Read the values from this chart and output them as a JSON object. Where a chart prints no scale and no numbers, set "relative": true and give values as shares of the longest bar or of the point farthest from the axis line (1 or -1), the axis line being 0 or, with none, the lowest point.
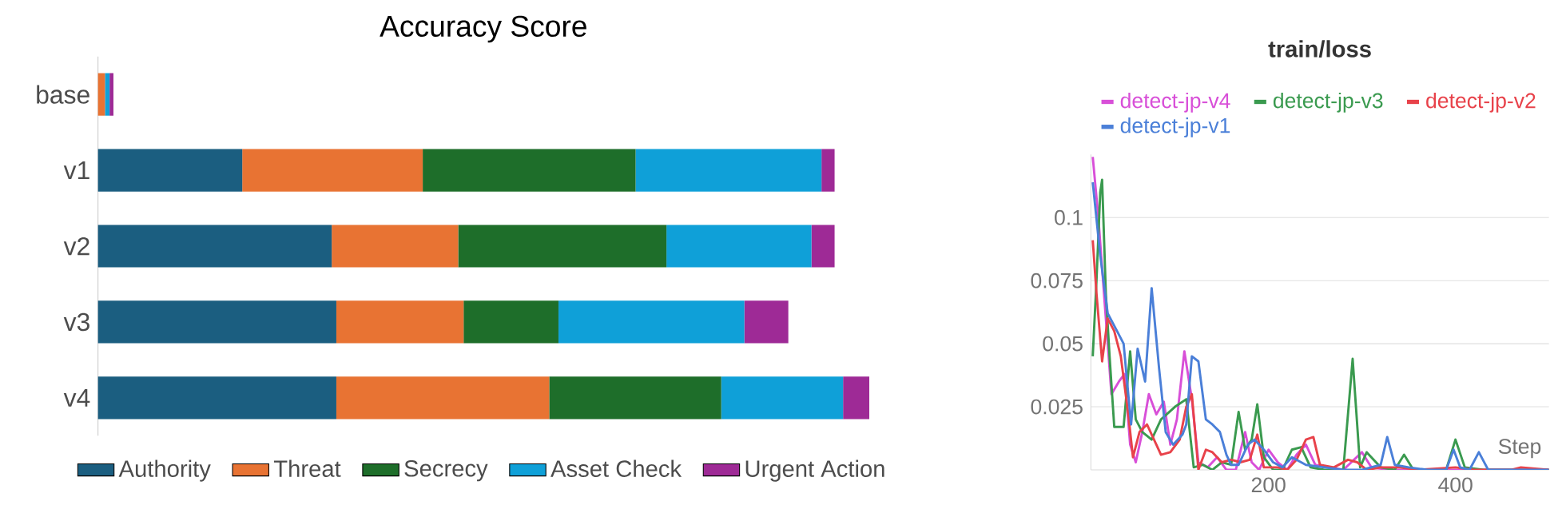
{
  "chart_data": [
    {
      "type": "bar",
      "orientation": "horizontal",
      "stacked": true,
      "relative": true,
      "title": "Accuracy Score",
      "legend": "bottom",
      "categories": [
        "base",
        "v1",
        "v2",
        "v3",
        "v4"
      ],
      "series": [
        {
          "name": "Authority",
          "color": "#1b5e80",
          "values": [
            0,
            0.187,
            0.303,
            0.309,
            0.309
          ]
        },
        {
          "name": "Threat",
          "color": "#e87333",
          "values": [
            0.009,
            0.234,
            0.164,
            0.165,
            0.276
          ]
        },
        {
          "name": "Secrecy",
          "color": "#1e6e2a",
          "values": [
            0,
            0.276,
            0.27,
            0.123,
            0.223
          ]
        },
        {
          "name": "Asset Check",
          "color": "#0fa0d8",
          "values": [
            0.006,
            0.241,
            0.188,
            0.241,
            0.158
          ]
        },
        {
          "name": "Urgent Action",
          "color": "#9e2a96",
          "values": [
            0.005,
            0.017,
            0.03,
            0.057,
            0.034
          ]
        }
      ]
    },
    {
      "type": "line",
      "title": "train/loss",
      "xlabel": "Step",
      "legend": "top",
      "grid": "y",
      "xlim": [
        10,
        500
      ],
      "ylim": [
        0,
        0.125
      ],
      "xticks": [
        200,
        400
      ],
      "yticks": [
        0.025,
        0.05,
        0.075,
        0.1
      ],
      "series": [
        {
          "name": "detect-jp-v4",
          "color": "#d84fd8",
          "x": [
            12,
            18,
            25,
            32,
            40,
            46,
            52,
            58,
            65,
            72,
            80,
            88,
            95,
            102,
            110,
            118,
            125,
            135,
            145,
            155,
            165,
            175,
            182,
            190,
            200,
            210,
            220,
            230,
            240,
            250,
            265,
            280,
            300,
            310,
            330,
            360,
            400,
            500
          ],
          "values": [
            0.124,
            0.1,
            0.065,
            0.03,
            0.035,
            0.038,
            0.01,
            0.003,
            0.015,
            0.03,
            0.022,
            0.027,
            0.01,
            0.02,
            0.047,
            0.028,
            0.003,
            0.001,
            0.005,
            0,
            0,
            0.015,
            0.003,
            0,
            0.008,
            0.003,
            0,
            0.006,
            0.01,
            0.002,
            0.001,
            0,
            0.007,
            0.001,
            0,
            0,
            0,
            0
          ]
        },
        {
          "name": "detect-jp-v3",
          "color": "#3a9a4f",
          "x": [
            12,
            16,
            20,
            22,
            26,
            30,
            35,
            45,
            52,
            58,
            65,
            75,
            85,
            100,
            112,
            120,
            130,
            140,
            150,
            160,
            168,
            175,
            182,
            188,
            195,
            205,
            215,
            225,
            235,
            245,
            260,
            280,
            290,
            298,
            305,
            320,
            335,
            345,
            355,
            390,
            400,
            410,
            430,
            500
          ],
          "values": [
            0.045,
            0.075,
            0.11,
            0.115,
            0.07,
            0.045,
            0.017,
            0.017,
            0.047,
            0.02,
            0.015,
            0.012,
            0.02,
            0.025,
            0.028,
            0.001,
            0.002,
            0,
            0.003,
            0.002,
            0.023,
            0.008,
            0.012,
            0.026,
            0.005,
            0,
            0,
            0.008,
            0.009,
            0.001,
            0,
            0,
            0.044,
            0.001,
            0.007,
            0.001,
            0,
            0.006,
            0,
            0,
            0.012,
            0.001,
            0,
            0
          ]
        },
        {
          "name": "detect-jp-v2",
          "color": "#e8424a",
          "x": [
            12,
            16,
            22,
            28,
            35,
            42,
            50,
            55,
            62,
            70,
            80,
            85,
            95,
            105,
            112,
            118,
            125,
            133,
            140,
            150,
            160,
            170,
            180,
            188,
            195,
            210,
            220,
            230,
            240,
            248,
            255,
            270,
            285,
            295,
            305,
            320,
            340,
            360,
            400,
            420,
            460,
            470,
            500
          ],
          "values": [
            0.091,
            0.07,
            0.043,
            0.06,
            0.055,
            0.045,
            0.022,
            0.005,
            0.015,
            0.018,
            0.01,
            0.006,
            0.007,
            0.012,
            0.025,
            0.03,
            0,
            0.008,
            0.007,
            0.003,
            0.004,
            0.003,
            0.004,
            0.014,
            0.001,
            0.001,
            0,
            0.004,
            0.012,
            0.013,
            0.002,
            0.001,
            0.004,
            0.003,
            0,
            0.001,
            0.001,
            0,
            0.001,
            0,
            0,
            0.001,
            0
          ]
        },
        {
          "name": "detect-jp-v1",
          "color": "#4a7fd8",
          "x": [
            12,
            20,
            28,
            38,
            45,
            53,
            60,
            68,
            75,
            83,
            90,
            98,
            108,
            112,
            118,
            125,
            133,
            140,
            148,
            155,
            160,
            168,
            178,
            185,
            195,
            205,
            215,
            225,
            240,
            260,
            280,
            300,
            320,
            327,
            335,
            350,
            370,
            390,
            398,
            405,
            415,
            425,
            435,
            460,
            500
          ],
          "values": [
            0.114,
            0.085,
            0.062,
            0.055,
            0.05,
            0.018,
            0.048,
            0.035,
            0.072,
            0.04,
            0.015,
            0.01,
            0.014,
            0.018,
            0.045,
            0.043,
            0.02,
            0.018,
            0.015,
            0.006,
            0.002,
            0.002,
            0.01,
            0.012,
            0.008,
            0.003,
            0.001,
            0.005,
            0.002,
            0.001,
            0,
            0,
            0.002,
            0.013,
            0.002,
            0.001,
            0,
            0,
            0.008,
            0.001,
            0,
            0.007,
            0,
            0,
            0
          ]
        }
      ]
    }
  ]
}
